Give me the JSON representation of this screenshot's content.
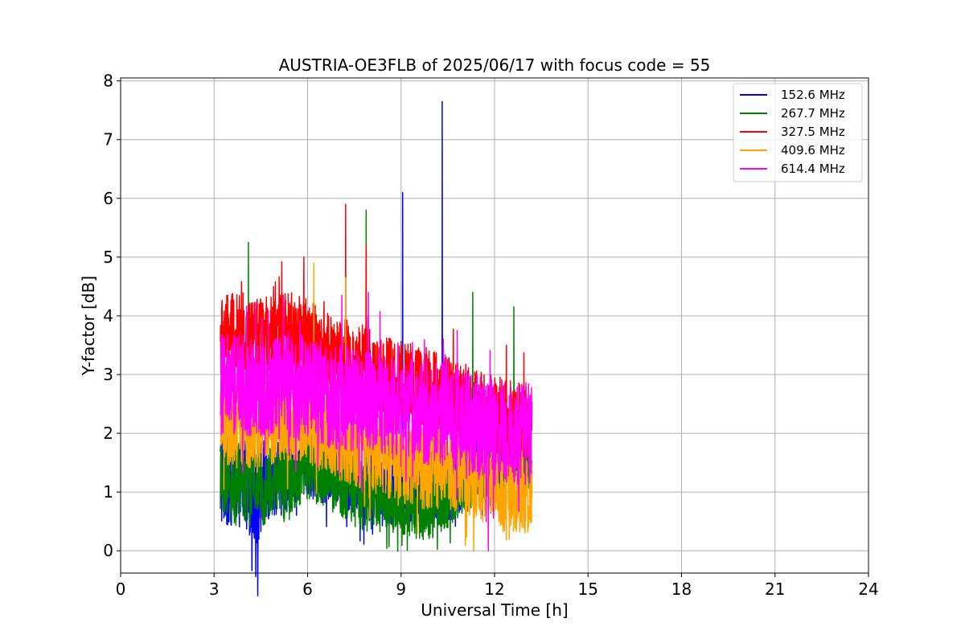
{
  "chart_data": {
    "type": "line",
    "title": "AUSTRIA-OE3FLB of 2025/06/17 with focus code = 55",
    "xlabel": "Universal Time [h]",
    "ylabel": "Y-factor [dB]",
    "xlim": [
      0,
      24
    ],
    "ylim": [
      -0.38,
      8.05
    ],
    "xticks": [
      0,
      3,
      6,
      9,
      12,
      15,
      18,
      21,
      24
    ],
    "yticks": [
      0,
      1,
      2,
      3,
      4,
      5,
      6,
      7,
      8
    ],
    "grid": true,
    "legend_position": "top-right",
    "series": [
      {
        "name": "152.6 MHz",
        "color": "#0000ff",
        "x": [
          3.2,
          3.5,
          4.0,
          4.4,
          4.8,
          5.2,
          5.6,
          6.0,
          6.5,
          7.0,
          7.5,
          8.0,
          8.5,
          9.0,
          9.05,
          9.1,
          9.5,
          10.0,
          10.3,
          10.35,
          10.8,
          11.2,
          11.6,
          12.0,
          12.4,
          12.8,
          13.2
        ],
        "mid": [
          1.3,
          1.1,
          1.2,
          1.0,
          1.2,
          1.3,
          1.4,
          1.5,
          1.4,
          1.3,
          1.2,
          1.1,
          1.0,
          1.1,
          1.1,
          1.0,
          1.0,
          1.1,
          1.0,
          1.0,
          1.2,
          1.4,
          1.5,
          1.7,
          1.8,
          1.9,
          1.6
        ],
        "amp": [
          0.9,
          0.7,
          0.8,
          1.0,
          0.6,
          0.7,
          0.6,
          0.6,
          0.6,
          0.5,
          0.6,
          0.6,
          0.6,
          0.6,
          0.6,
          0.6,
          0.6,
          0.6,
          0.6,
          0.6,
          0.6,
          0.5,
          0.5,
          0.5,
          0.5,
          0.5,
          0.6
        ],
        "spikes": [
          [
            9.05,
            6.1
          ],
          [
            10.32,
            7.65
          ]
        ]
      },
      {
        "name": "267.7 MHz",
        "color": "#008000",
        "x": [
          3.2,
          3.6,
          4.1,
          4.5,
          5.0,
          5.2,
          5.6,
          6.0,
          6.5,
          7.0,
          7.5,
          8.0,
          8.5,
          9.0,
          9.5,
          10.0,
          10.3,
          10.8,
          11.3,
          11.8,
          12.3,
          12.6,
          13.2
        ],
        "mid": [
          1.2,
          1.1,
          1.2,
          1.1,
          1.2,
          1.2,
          1.3,
          1.4,
          1.3,
          1.2,
          1.0,
          0.9,
          0.8,
          0.8,
          0.7,
          0.7,
          0.8,
          1.0,
          1.2,
          1.3,
          1.5,
          1.6,
          1.5
        ],
        "amp": [
          0.6,
          0.7,
          0.7,
          0.7,
          0.6,
          0.8,
          0.6,
          0.6,
          0.6,
          0.6,
          0.6,
          0.6,
          0.5,
          0.5,
          0.5,
          0.5,
          0.5,
          0.5,
          0.5,
          0.5,
          0.5,
          0.5,
          0.6
        ],
        "spikes": [
          [
            4.1,
            5.25
          ],
          [
            7.88,
            5.8
          ],
          [
            11.3,
            4.4
          ],
          [
            12.62,
            4.15
          ]
        ]
      },
      {
        "name": "327.5 MHz",
        "color": "#ff0000",
        "x": [
          3.2,
          3.6,
          4.0,
          4.5,
          5.0,
          5.5,
          6.0,
          6.5,
          7.0,
          7.5,
          8.0,
          8.5,
          9.0,
          9.5,
          10.0,
          10.5,
          11.0,
          11.5,
          12.0,
          12.5,
          13.2
        ],
        "mid": [
          3.6,
          3.7,
          3.6,
          3.6,
          3.7,
          3.7,
          3.6,
          3.4,
          3.3,
          3.2,
          3.1,
          3.0,
          2.9,
          2.8,
          2.7,
          2.6,
          2.5,
          2.4,
          2.3,
          2.2,
          2.1
        ],
        "amp": [
          0.7,
          0.7,
          0.7,
          0.7,
          0.7,
          0.7,
          0.7,
          0.7,
          0.7,
          0.7,
          0.7,
          0.7,
          0.7,
          0.7,
          0.7,
          0.7,
          0.7,
          0.7,
          0.7,
          0.7,
          0.7
        ],
        "spikes": [
          [
            5.88,
            5.0
          ],
          [
            7.22,
            5.9
          ],
          [
            7.88,
            5.2
          ],
          [
            12.38,
            3.5
          ]
        ]
      },
      {
        "name": "409.6 MHz",
        "color": "#ffa500",
        "x": [
          3.2,
          3.6,
          4.0,
          4.5,
          5.0,
          5.5,
          6.0,
          6.5,
          7.0,
          7.5,
          8.0,
          8.5,
          9.0,
          9.5,
          10.0,
          10.5,
          11.0,
          11.5,
          12.0,
          12.5,
          13.2
        ],
        "mid": [
          2.2,
          2.1,
          2.1,
          2.1,
          2.2,
          2.2,
          2.2,
          2.0,
          1.9,
          1.8,
          1.7,
          1.6,
          1.5,
          1.4,
          1.4,
          1.4,
          1.3,
          1.2,
          1.1,
          1.0,
          1.0
        ],
        "amp": [
          0.7,
          0.7,
          0.7,
          0.7,
          0.7,
          0.7,
          0.7,
          0.7,
          0.7,
          0.7,
          0.7,
          0.7,
          0.7,
          0.7,
          0.7,
          0.7,
          0.7,
          0.7,
          0.7,
          0.7,
          0.7
        ],
        "spikes": [
          [
            6.2,
            4.9
          ],
          [
            7.22,
            4.65
          ]
        ]
      },
      {
        "name": "614.4 MHz",
        "color": "#ff00ff",
        "x": [
          3.2,
          3.6,
          4.0,
          4.5,
          5.0,
          5.5,
          6.0,
          6.5,
          7.0,
          7.5,
          8.0,
          8.5,
          9.0,
          9.5,
          10.0,
          10.5,
          11.0,
          11.5,
          12.0,
          12.5,
          13.2
        ],
        "mid": [
          2.8,
          2.8,
          2.8,
          2.8,
          2.8,
          2.8,
          2.7,
          2.7,
          2.6,
          2.6,
          2.5,
          2.5,
          2.4,
          2.4,
          2.3,
          2.3,
          2.2,
          2.1,
          2.0,
          2.0,
          2.0
        ],
        "amp": [
          0.9,
          0.9,
          0.9,
          0.9,
          0.9,
          0.9,
          0.9,
          0.9,
          0.9,
          0.9,
          0.9,
          0.9,
          0.9,
          0.9,
          0.9,
          0.9,
          0.9,
          0.9,
          0.9,
          0.9,
          0.9
        ],
        "spikes": [
          [
            7.1,
            4.35
          ],
          [
            7.95,
            4.4
          ],
          [
            10.8,
            3.75
          ],
          [
            11.8,
            0.0
          ]
        ]
      }
    ]
  }
}
